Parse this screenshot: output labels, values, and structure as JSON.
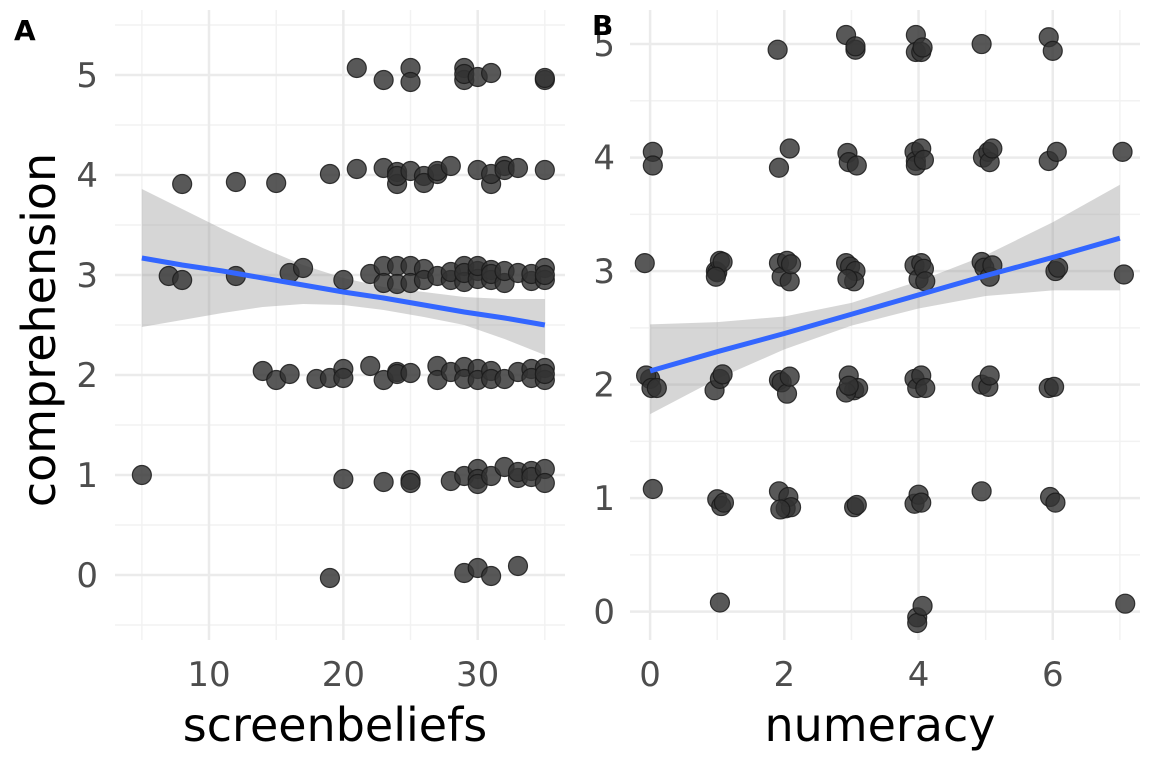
{
  "chart_data": [
    {
      "type": "scatter",
      "panel_tag": "A",
      "xlabel": "screenbeliefs",
      "ylabel": "comprehension",
      "xlim": [
        3,
        36.5
      ],
      "ylim": [
        -0.65,
        5.65
      ],
      "x_major_ticks": [
        10,
        20,
        30
      ],
      "x_minor_ticks": [
        5,
        15,
        25,
        35
      ],
      "y_major_ticks": [
        0,
        1,
        2,
        3,
        4,
        5
      ],
      "y_minor_ticks": [
        -0.5,
        0.5,
        1.5,
        2.5,
        3.5,
        4.5,
        5.5
      ],
      "grid": true,
      "point_color": "#333333",
      "line_color": "#3366FF",
      "band_color": "#999999",
      "fit": {
        "x": [
          5,
          8,
          11,
          14,
          17,
          20,
          23,
          26,
          29,
          32,
          35
        ],
        "y": [
          3.17,
          3.1,
          3.04,
          2.97,
          2.9,
          2.83,
          2.77,
          2.7,
          2.63,
          2.57,
          2.5
        ],
        "lower": [
          2.48,
          2.55,
          2.62,
          2.68,
          2.71,
          2.7,
          2.65,
          2.58,
          2.5,
          2.36,
          2.2
        ],
        "upper": [
          3.86,
          3.66,
          3.46,
          3.27,
          3.1,
          2.97,
          2.88,
          2.83,
          2.78,
          2.76,
          2.76
        ]
      },
      "points": [
        [
          5,
          1.0
        ],
        [
          7,
          2.99
        ],
        [
          8,
          3.91
        ],
        [
          8,
          2.95
        ],
        [
          12,
          3.93
        ],
        [
          12,
          2.99
        ],
        [
          14,
          2.04
        ],
        [
          15,
          1.95
        ],
        [
          15,
          3.92
        ],
        [
          16,
          3.02
        ],
        [
          16,
          2.01
        ],
        [
          17,
          3.07
        ],
        [
          18,
          1.96
        ],
        [
          19,
          -0.03
        ],
        [
          19,
          1.97
        ],
        [
          19,
          4.01
        ],
        [
          20,
          2.06
        ],
        [
          20,
          0.96
        ],
        [
          20,
          1.97
        ],
        [
          20,
          2.95
        ],
        [
          21,
          5.07
        ],
        [
          21,
          4.06
        ],
        [
          22,
          2.09
        ],
        [
          22,
          3.01
        ],
        [
          23,
          4.95
        ],
        [
          23,
          3.09
        ],
        [
          23,
          2.92
        ],
        [
          23,
          0.93
        ],
        [
          23,
          1.95
        ],
        [
          23,
          4.07
        ],
        [
          24,
          4.03
        ],
        [
          24,
          3.91
        ],
        [
          24,
          3.09
        ],
        [
          24,
          2.91
        ],
        [
          24,
          2.03
        ],
        [
          24,
          2.01
        ],
        [
          24,
          3.99
        ],
        [
          25,
          5.07
        ],
        [
          25,
          4.93
        ],
        [
          25,
          4.04
        ],
        [
          25,
          3.09
        ],
        [
          25,
          2.92
        ],
        [
          25,
          0.95
        ],
        [
          25,
          0.92
        ],
        [
          25,
          2.02
        ],
        [
          26,
          3.99
        ],
        [
          26,
          3.92
        ],
        [
          26,
          3.06
        ],
        [
          26,
          2.95
        ],
        [
          27,
          4.01
        ],
        [
          27,
          4.04
        ],
        [
          27,
          2.99
        ],
        [
          27,
          2.09
        ],
        [
          27,
          1.95
        ],
        [
          28,
          2.95
        ],
        [
          28,
          4.09
        ],
        [
          28,
          0.94
        ],
        [
          28,
          2.03
        ],
        [
          28,
          3.03
        ],
        [
          29,
          5.07
        ],
        [
          29,
          4.95
        ],
        [
          29,
          3.09
        ],
        [
          29,
          2.93
        ],
        [
          29,
          2.08
        ],
        [
          29,
          1.96
        ],
        [
          29,
          0.99
        ],
        [
          29,
          0.02
        ],
        [
          29,
          3.02
        ],
        [
          29,
          5.01
        ],
        [
          30,
          4.98
        ],
        [
          30,
          4.05
        ],
        [
          30,
          3.04
        ],
        [
          30,
          2.96
        ],
        [
          30,
          2.06
        ],
        [
          30,
          1.95
        ],
        [
          30,
          1.06
        ],
        [
          30,
          0.96
        ],
        [
          30,
          0.07
        ],
        [
          30,
          0.91
        ],
        [
          30,
          3.09
        ],
        [
          31,
          5.02
        ],
        [
          31,
          3.91
        ],
        [
          31,
          4.01
        ],
        [
          31,
          3.05
        ],
        [
          31,
          2.95
        ],
        [
          31,
          2.04
        ],
        [
          31,
          1.96
        ],
        [
          31,
          0.99
        ],
        [
          31,
          -0.01
        ],
        [
          31,
          3.01
        ],
        [
          32,
          4.09
        ],
        [
          32,
          2.92
        ],
        [
          32,
          1.96
        ],
        [
          32,
          1.08
        ],
        [
          32,
          3.04
        ],
        [
          32,
          4.05
        ],
        [
          33,
          4.07
        ],
        [
          33,
          3.02
        ],
        [
          33,
          2.03
        ],
        [
          33,
          0.97
        ],
        [
          33,
          0.09
        ],
        [
          33,
          1.03
        ],
        [
          34,
          2.94
        ],
        [
          34,
          2.06
        ],
        [
          34,
          1.04
        ],
        [
          34,
          3.01
        ],
        [
          34,
          1.97
        ],
        [
          34,
          0.98
        ],
        [
          35,
          4.95
        ],
        [
          35,
          4.05
        ],
        [
          35,
          3.07
        ],
        [
          35,
          2.95
        ],
        [
          35,
          2.07
        ],
        [
          35,
          1.95
        ],
        [
          35,
          1.06
        ],
        [
          35,
          0.92
        ],
        [
          35,
          3.0
        ],
        [
          35,
          2.01
        ],
        [
          35,
          4.97
        ]
      ]
    },
    {
      "type": "scatter",
      "panel_tag": "B",
      "xlabel": "numeracy",
      "ylabel": "",
      "xlim": [
        -0.3,
        7.3
      ],
      "ylim": [
        -0.25,
        5.3
      ],
      "x_major_ticks": [
        0,
        2,
        4,
        6
      ],
      "x_minor_ticks": [
        1,
        3,
        5,
        7
      ],
      "y_major_ticks": [
        0,
        1,
        2,
        3,
        4,
        5
      ],
      "y_minor_ticks": [
        0.5,
        1.5,
        2.5,
        3.5,
        4.5
      ],
      "grid": true,
      "point_color": "#333333",
      "line_color": "#3366FF",
      "band_color": "#999999",
      "fit": {
        "x": [
          0,
          1,
          2,
          3,
          4,
          5,
          6,
          7
        ],
        "y": [
          2.12,
          2.29,
          2.45,
          2.62,
          2.79,
          2.96,
          3.12,
          3.29
        ],
        "lower": [
          1.74,
          2.05,
          2.31,
          2.52,
          2.67,
          2.78,
          2.83,
          2.83
        ],
        "upper": [
          2.53,
          2.55,
          2.6,
          2.72,
          2.91,
          3.14,
          3.43,
          3.76
        ]
      },
      "points": [
        [
          -0.08,
          3.07
        ],
        [
          0.04,
          4.05
        ],
        [
          0.04,
          3.93
        ],
        [
          0.0,
          2.05
        ],
        [
          -0.06,
          2.08
        ],
        [
          0.02,
          1.97
        ],
        [
          0.1,
          1.97
        ],
        [
          0.04,
          1.08
        ],
        [
          0.98,
          3.0
        ],
        [
          0.96,
          1.95
        ],
        [
          1.0,
          2.99
        ],
        [
          1.04,
          3.09
        ],
        [
          1.08,
          3.08
        ],
        [
          0.98,
          2.95
        ],
        [
          1.04,
          2.05
        ],
        [
          1.08,
          2.09
        ],
        [
          1.0,
          0.99
        ],
        [
          1.06,
          0.93
        ],
        [
          1.1,
          0.96
        ],
        [
          1.04,
          0.08
        ],
        [
          1.9,
          4.95
        ],
        [
          1.92,
          3.91
        ],
        [
          2.08,
          4.08
        ],
        [
          1.92,
          3.07
        ],
        [
          1.96,
          2.95
        ],
        [
          2.04,
          3.09
        ],
        [
          2.08,
          2.91
        ],
        [
          2.1,
          3.06
        ],
        [
          1.92,
          2.04
        ],
        [
          1.96,
          2.02
        ],
        [
          2.04,
          1.92
        ],
        [
          2.08,
          2.07
        ],
        [
          1.92,
          1.06
        ],
        [
          2.02,
          0.91
        ],
        [
          2.06,
          1.01
        ],
        [
          2.1,
          0.92
        ],
        [
          1.94,
          0.9
        ],
        [
          2.92,
          5.08
        ],
        [
          3.06,
          4.95
        ],
        [
          3.06,
          4.98
        ],
        [
          2.94,
          4.04
        ],
        [
          2.96,
          3.96
        ],
        [
          3.08,
          3.93
        ],
        [
          2.92,
          3.07
        ],
        [
          2.98,
          3.04
        ],
        [
          3.06,
          3.0
        ],
        [
          3.04,
          2.91
        ],
        [
          2.94,
          2.93
        ],
        [
          2.96,
          2.08
        ],
        [
          3.04,
          1.95
        ],
        [
          3.1,
          1.97
        ],
        [
          2.92,
          1.93
        ],
        [
          2.96,
          1.99
        ],
        [
          3.04,
          0.92
        ],
        [
          3.08,
          0.94
        ],
        [
          3.96,
          5.08
        ],
        [
          3.96,
          4.93
        ],
        [
          4.04,
          4.93
        ],
        [
          4.06,
          4.97
        ],
        [
          3.94,
          4.05
        ],
        [
          3.96,
          3.97
        ],
        [
          3.96,
          3.93
        ],
        [
          4.04,
          4.08
        ],
        [
          4.08,
          3.98
        ],
        [
          3.94,
          3.05
        ],
        [
          4.0,
          2.93
        ],
        [
          4.04,
          3.07
        ],
        [
          4.08,
          3.02
        ],
        [
          4.1,
          2.91
        ],
        [
          3.94,
          2.05
        ],
        [
          3.98,
          1.97
        ],
        [
          4.04,
          2.08
        ],
        [
          4.1,
          1.97
        ],
        [
          3.94,
          0.95
        ],
        [
          4.0,
          1.03
        ],
        [
          4.04,
          0.96
        ],
        [
          3.98,
          -0.05
        ],
        [
          3.98,
          -0.1
        ],
        [
          4.06,
          0.05
        ],
        [
          4.94,
          5.0
        ],
        [
          4.96,
          4.0
        ],
        [
          5.04,
          4.05
        ],
        [
          5.06,
          3.96
        ],
        [
          5.1,
          4.08
        ],
        [
          4.94,
          3.08
        ],
        [
          4.98,
          3.03
        ],
        [
          5.06,
          2.95
        ],
        [
          5.1,
          3.05
        ],
        [
          4.94,
          2.0
        ],
        [
          5.04,
          1.98
        ],
        [
          5.06,
          2.08
        ],
        [
          4.94,
          1.06
        ],
        [
          5.94,
          5.06
        ],
        [
          6.0,
          4.94
        ],
        [
          5.94,
          3.97
        ],
        [
          6.06,
          4.05
        ],
        [
          6.04,
          3.0
        ],
        [
          6.08,
          3.03
        ],
        [
          5.94,
          1.97
        ],
        [
          6.02,
          1.98
        ],
        [
          5.96,
          1.01
        ],
        [
          6.04,
          0.96
        ],
        [
          7.04,
          4.05
        ],
        [
          7.06,
          2.97
        ],
        [
          7.08,
          0.07
        ]
      ]
    }
  ]
}
